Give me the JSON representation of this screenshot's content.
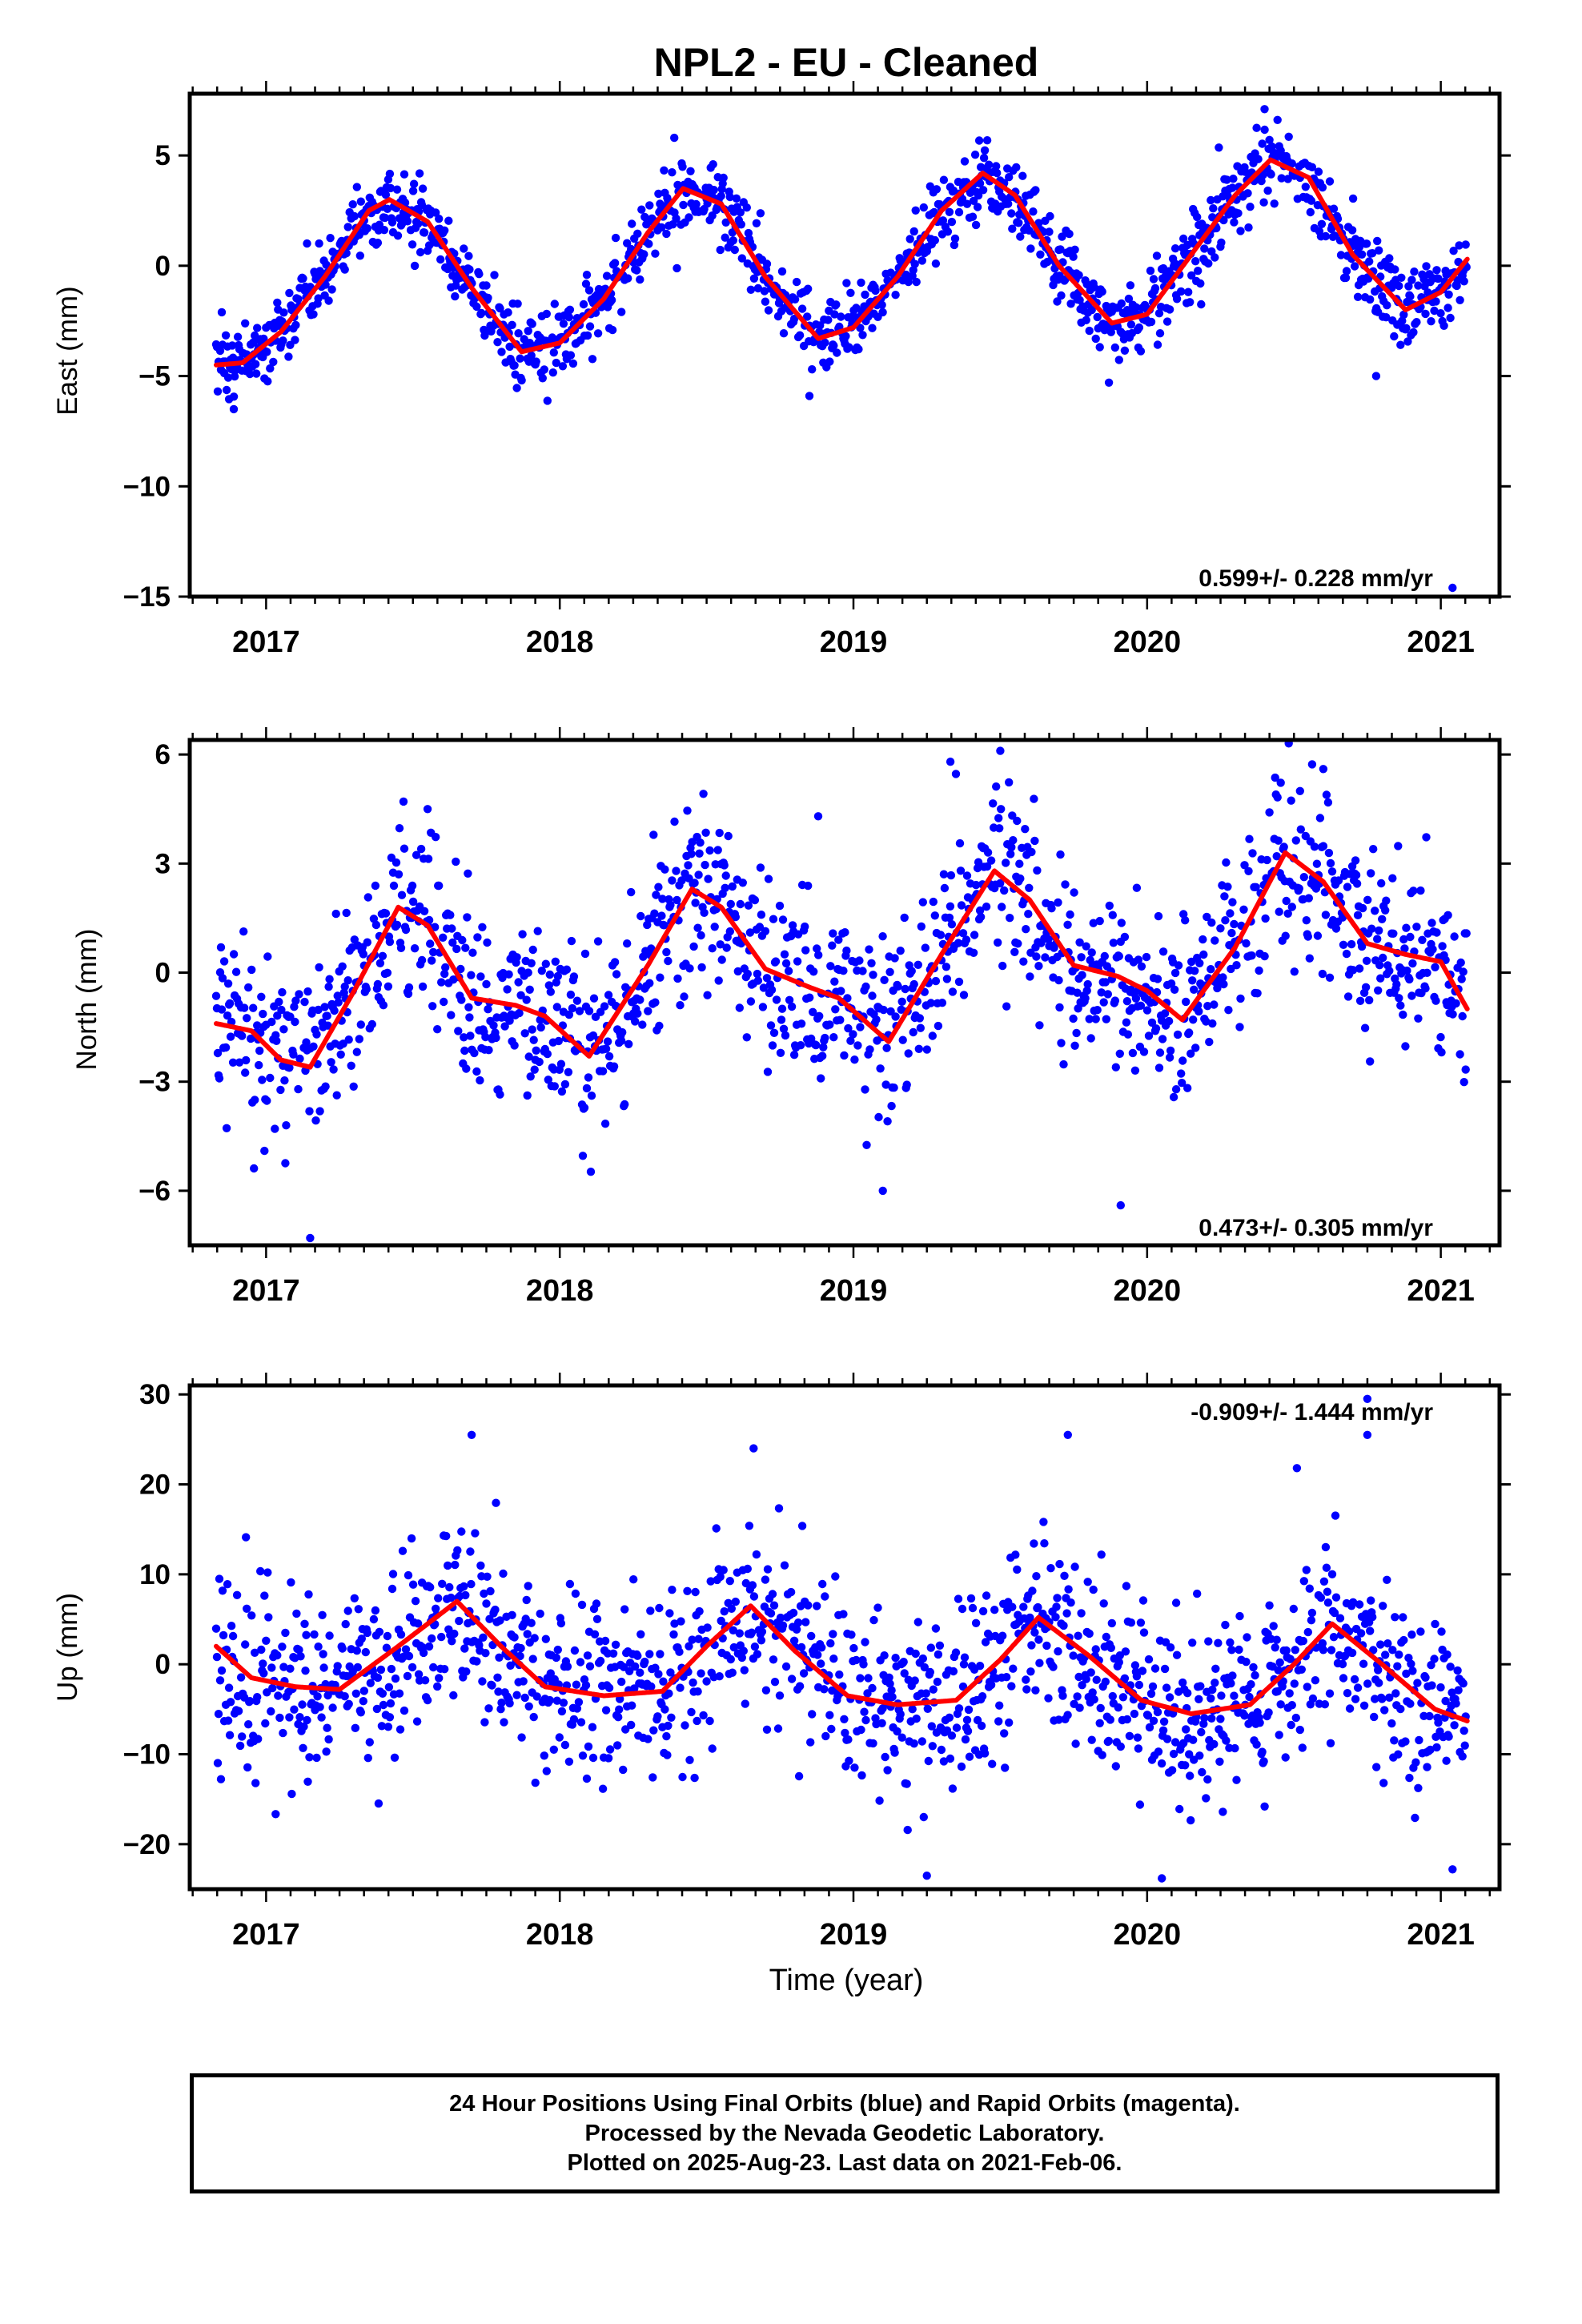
{
  "title": "NPL2  - EU - Cleaned",
  "xlabel": "Time (year)",
  "footer": [
    "24 Hour Positions Using Final Orbits (blue) and Rapid Orbits (magenta).",
    "Processed by the Nevada Geodetic Laboratory.",
    "Plotted on 2025-Aug-23. Last data on 2021-Feb-06."
  ],
  "colors": {
    "points": "#0000ff",
    "fit": "#ff0000",
    "frame": "#000000"
  },
  "chart_data": [
    {
      "type": "scatter",
      "ylabel": "East (mm)",
      "rate_label": "0.599+/- 0.228 mm/yr",
      "xlim": [
        2016.74,
        2021.2
      ],
      "ylim": [
        -15,
        7.8
      ],
      "yticks": [
        5,
        0,
        -5,
        -10,
        -15
      ],
      "xticks": [
        2017,
        2018,
        2019,
        2020,
        2021
      ],
      "trend": 0.599,
      "fit": {
        "x": [
          2016.83,
          2016.92,
          2017.05,
          2017.2,
          2017.35,
          2017.42,
          2017.55,
          2017.7,
          2017.87,
          2018.0,
          2018.15,
          2018.3,
          2018.42,
          2018.55,
          2018.7,
          2018.88,
          2019.0,
          2019.15,
          2019.3,
          2019.44,
          2019.55,
          2019.7,
          2019.88,
          2020.0,
          2020.15,
          2020.3,
          2020.42,
          2020.55,
          2020.7,
          2020.88,
          2021.0,
          2021.09
        ],
        "y": [
          -4.5,
          -4.4,
          -3.0,
          -0.5,
          2.5,
          3.0,
          2.0,
          -1.0,
          -3.9,
          -3.5,
          -1.5,
          1.5,
          3.5,
          2.8,
          -0.5,
          -3.3,
          -2.8,
          -0.5,
          2.5,
          4.2,
          3.2,
          0.0,
          -2.6,
          -2.2,
          0.5,
          3.2,
          4.8,
          4.0,
          0.5,
          -2.0,
          -1.2,
          0.3
        ]
      },
      "residual_sd": 0.85,
      "outliers": [
        [
          2021.04,
          -14.6
        ],
        [
          2016.89,
          -6.5
        ],
        [
          2018.85,
          -5.9
        ],
        [
          2019.87,
          -5.3
        ],
        [
          2020.78,
          -5.0
        ],
        [
          2020.4,
          7.1
        ],
        [
          2018.39,
          5.8
        ]
      ]
    },
    {
      "type": "scatter",
      "ylabel": "North (mm)",
      "rate_label": "0.473+/- 0.305 mm/yr",
      "xlim": [
        2016.74,
        2021.2
      ],
      "ylim": [
        -7.5,
        6.4
      ],
      "yticks": [
        6,
        3,
        0,
        -3,
        -6
      ],
      "xticks": [
        2017,
        2018,
        2019,
        2020,
        2021
      ],
      "trend": 0.473,
      "fit": {
        "x": [
          2016.83,
          2016.95,
          2017.05,
          2017.15,
          2017.3,
          2017.45,
          2017.55,
          2017.7,
          2017.85,
          2017.95,
          2018.1,
          2018.3,
          2018.45,
          2018.55,
          2018.7,
          2018.85,
          2018.95,
          2019.12,
          2019.3,
          2019.48,
          2019.6,
          2019.75,
          2019.9,
          2020.0,
          2020.12,
          2020.3,
          2020.47,
          2020.6,
          2020.75,
          2020.88,
          2021.0,
          2021.09
        ],
        "y": [
          -1.4,
          -1.6,
          -2.4,
          -2.6,
          -0.5,
          1.8,
          1.3,
          -0.7,
          -0.9,
          -1.2,
          -2.3,
          0.2,
          2.3,
          1.8,
          0.1,
          -0.4,
          -0.7,
          -1.9,
          0.5,
          2.8,
          2.0,
          0.2,
          -0.1,
          -0.5,
          -1.3,
          0.7,
          3.3,
          2.5,
          0.8,
          0.5,
          0.3,
          -1.0
        ]
      },
      "residual_sd": 1.25,
      "outliers": [
        [
          2017.15,
          -7.3
        ],
        [
          2019.91,
          -6.4
        ],
        [
          2019.1,
          -6.0
        ],
        [
          2019.33,
          5.8
        ],
        [
          2019.5,
          6.1
        ],
        [
          2020.6,
          5.6
        ],
        [
          2018.88,
          4.3
        ],
        [
          2017.55,
          4.5
        ]
      ]
    },
    {
      "type": "scatter",
      "ylabel": "Up (mm)",
      "rate_label": "-0.909+/- 1.444 mm/yr",
      "xlim": [
        2016.74,
        2021.2
      ],
      "ylim": [
        -25,
        31
      ],
      "yticks": [
        30,
        20,
        10,
        0,
        -10,
        -20
      ],
      "xticks": [
        2017,
        2018,
        2019,
        2020,
        2021
      ],
      "trend": -0.909,
      "fit": {
        "x": [
          2016.83,
          2016.95,
          2017.1,
          2017.25,
          2017.45,
          2017.65,
          2017.8,
          2017.95,
          2018.15,
          2018.35,
          2018.5,
          2018.65,
          2018.8,
          2018.98,
          2019.15,
          2019.35,
          2019.5,
          2019.63,
          2019.8,
          2019.98,
          2020.15,
          2020.35,
          2020.5,
          2020.63,
          2020.8,
          2020.98,
          2021.09
        ],
        "y": [
          2.0,
          -1.5,
          -2.5,
          -2.8,
          2.0,
          7.0,
          2.0,
          -2.5,
          -3.5,
          -3.0,
          2.0,
          6.5,
          1.5,
          -3.5,
          -4.5,
          -4.0,
          0.5,
          5.2,
          1.0,
          -4.0,
          -5.5,
          -4.5,
          0.0,
          4.5,
          0.0,
          -5.0,
          -6.3
        ]
      },
      "residual_sd": 5.0,
      "outliers": [
        [
          2020.75,
          29.5
        ],
        [
          2020.75,
          25.5
        ],
        [
          2017.7,
          25.5
        ],
        [
          2019.73,
          25.5
        ],
        [
          2018.66,
          24.0
        ],
        [
          2020.05,
          -23.8
        ],
        [
          2019.25,
          -23.5
        ],
        [
          2021.04,
          -22.8
        ],
        [
          2020.51,
          21.8
        ]
      ]
    }
  ]
}
